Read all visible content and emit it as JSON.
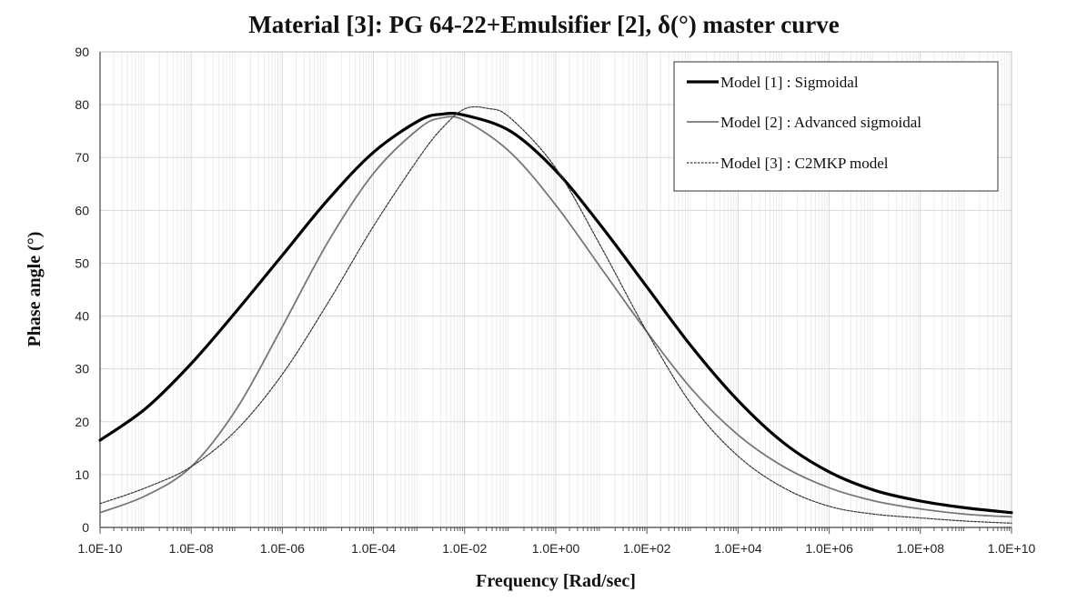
{
  "chart_data": {
    "type": "line",
    "title": "Material [3]: PG 64-22+Emulsifier [2], δ(°) master curve",
    "xlabel": "Frequency [Rad/sec]",
    "ylabel": "Phase angle (°)",
    "xscale": "log",
    "xlim": [
      1e-10,
      10000000000.0
    ],
    "ylim": [
      0,
      90
    ],
    "grid": true,
    "legend_position": "top-right",
    "x_tick_labels": [
      "1.0E-10",
      "1.0E-08",
      "1.0E-06",
      "1.0E-04",
      "1.0E-02",
      "1.0E+00",
      "1.0E+02",
      "1.0E+04",
      "1.0E+06",
      "1.0E+08",
      "1.0E+10"
    ],
    "y_tick_labels": [
      "0",
      "10",
      "20",
      "30",
      "40",
      "50",
      "60",
      "70",
      "80",
      "90"
    ],
    "y_ticks": [
      0,
      10,
      20,
      30,
      40,
      50,
      60,
      70,
      80,
      90
    ],
    "series": [
      {
        "name": "Model [1] : Sigmoidal",
        "color": "#000000",
        "style": "thick-solid",
        "log10_x": [
          -10,
          -9,
          -8,
          -7,
          -6,
          -5,
          -4,
          -3,
          -2.5,
          -2,
          -1,
          0,
          1,
          2,
          3,
          4,
          5,
          6,
          7,
          8,
          9,
          10
        ],
        "y": [
          16.5,
          22.5,
          31,
          41,
          51.5,
          62,
          71,
          77,
          78.2,
          78,
          75,
          67.5,
          57,
          45.5,
          34,
          24,
          16,
          10.5,
          7,
          5,
          3.7,
          2.8
        ]
      },
      {
        "name": "Model [2] : Advanced sigmoidal",
        "color": "#777777",
        "style": "solid",
        "log10_x": [
          -10,
          -9,
          -8,
          -7,
          -6,
          -5,
          -4,
          -3,
          -2.5,
          -2,
          -1,
          0,
          1,
          2,
          3,
          4,
          5,
          6,
          7,
          8,
          9,
          10
        ],
        "y": [
          2.8,
          6,
          11.5,
          22.5,
          38,
          54,
          67,
          75.5,
          77.5,
          77,
          71,
          61,
          49,
          37,
          26,
          17.5,
          11.5,
          7.5,
          5,
          3.5,
          2.5,
          2
        ]
      },
      {
        "name": "Model [3] : C2MKP model",
        "color": "#333333",
        "style": "dotted",
        "log10_x": [
          -10,
          -9,
          -8,
          -7,
          -6,
          -5,
          -4,
          -3,
          -2.5,
          -2,
          -1.5,
          -1,
          0,
          1,
          2,
          3,
          4,
          5,
          6,
          7,
          8,
          9,
          10
        ],
        "y": [
          4.5,
          7.5,
          11.5,
          18.5,
          29,
          42.5,
          57,
          70,
          75.5,
          79.2,
          79.3,
          77.5,
          68,
          53,
          37,
          23,
          13.5,
          7.5,
          4,
          2.5,
          1.8,
          1.2,
          0.8
        ]
      }
    ]
  }
}
